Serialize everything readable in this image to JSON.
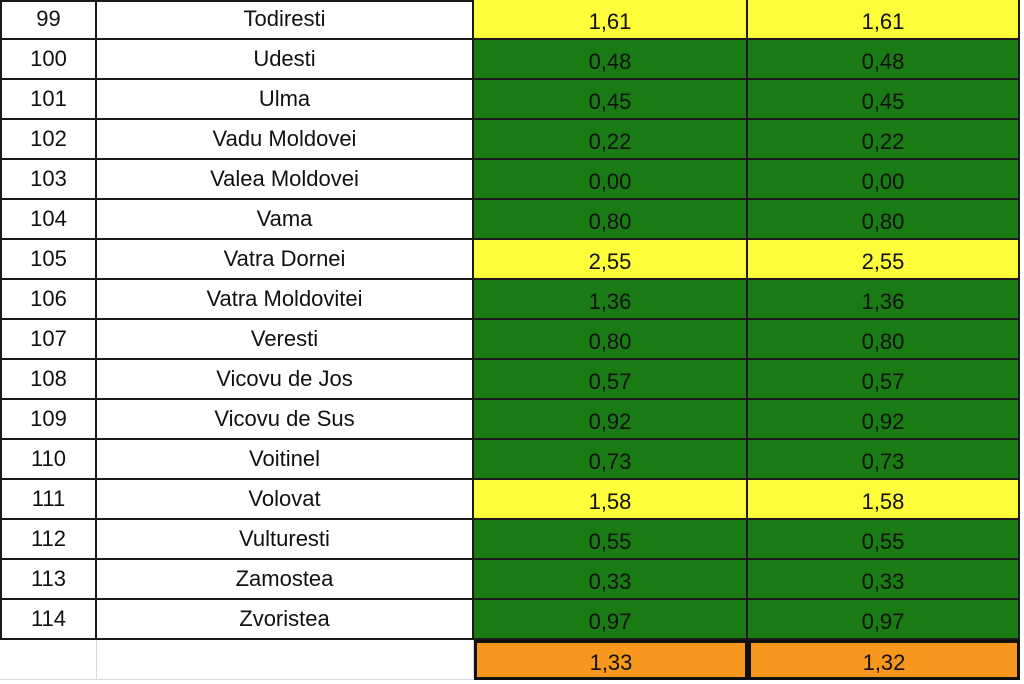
{
  "colors": {
    "green": "#1a7a14",
    "yellow": "#fdfd3a",
    "orange": "#f7971d",
    "border": "#1a1a1a"
  },
  "rows": [
    {
      "num": "99",
      "name": "Todiresti",
      "v1": "1,61",
      "v2": "1,61",
      "status": "yellow"
    },
    {
      "num": "100",
      "name": "Udesti",
      "v1": "0,48",
      "v2": "0,48",
      "status": "green"
    },
    {
      "num": "101",
      "name": "Ulma",
      "v1": "0,45",
      "v2": "0,45",
      "status": "green"
    },
    {
      "num": "102",
      "name": "Vadu Moldovei",
      "v1": "0,22",
      "v2": "0,22",
      "status": "green"
    },
    {
      "num": "103",
      "name": "Valea Moldovei",
      "v1": "0,00",
      "v2": "0,00",
      "status": "green"
    },
    {
      "num": "104",
      "name": "Vama",
      "v1": "0,80",
      "v2": "0,80",
      "status": "green"
    },
    {
      "num": "105",
      "name": "Vatra Dornei",
      "v1": "2,55",
      "v2": "2,55",
      "status": "yellow"
    },
    {
      "num": "106",
      "name": "Vatra Moldovitei",
      "v1": "1,36",
      "v2": "1,36",
      "status": "green"
    },
    {
      "num": "107",
      "name": "Veresti",
      "v1": "0,80",
      "v2": "0,80",
      "status": "green"
    },
    {
      "num": "108",
      "name": "Vicovu de Jos",
      "v1": "0,57",
      "v2": "0,57",
      "status": "green"
    },
    {
      "num": "109",
      "name": "Vicovu de Sus",
      "v1": "0,92",
      "v2": "0,92",
      "status": "green"
    },
    {
      "num": "110",
      "name": "Voitinel",
      "v1": "0,73",
      "v2": "0,73",
      "status": "green"
    },
    {
      "num": "111",
      "name": "Volovat",
      "v1": "1,58",
      "v2": "1,58",
      "status": "yellow"
    },
    {
      "num": "112",
      "name": "Vulturesti",
      "v1": "0,55",
      "v2": "0,55",
      "status": "green"
    },
    {
      "num": "113",
      "name": "Zamostea",
      "v1": "0,33",
      "v2": "0,33",
      "status": "green"
    },
    {
      "num": "114",
      "name": "Zvoristea",
      "v1": "0,97",
      "v2": "0,97",
      "status": "green"
    }
  ],
  "totals": {
    "v1": "1,33",
    "v2": "1,32",
    "status": "orange"
  }
}
